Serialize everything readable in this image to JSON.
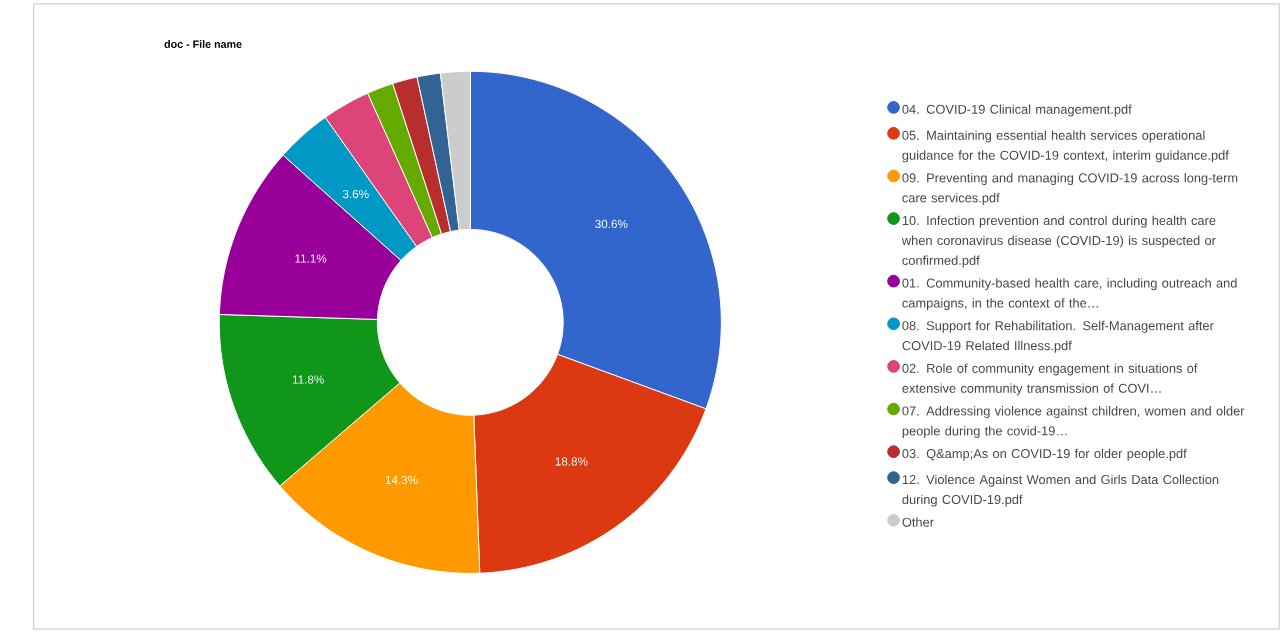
{
  "chart_data": {
    "type": "donut",
    "title": "doc - File name",
    "legend": "right",
    "categories": [
      "04. COVID-19 Clinical management.pdf",
      "05. Maintaining essential health services operational guidance for the COVID-19 context, interim guidance.pdf",
      "09. Preventing and managing COVID-19 across long-term care services.pdf",
      "10. Infection prevention and control during health care when coronavirus disease (COVID-19) is suspected or confirmed.pdf",
      "01. Community-based health care, including outreach and campaigns, in the context of the…",
      "08. Support for Rehabilitation. Self-Management after COVID-19 Related Illness.pdf",
      "02. Role of community engagement in situations of extensive community transmission of COVI…",
      "07. Addressing violence against children, women and older people during the covid-19…",
      "03. Q&amp;As on COVID-19 for older people.pdf",
      "12. Violence Against Women and Girls Data Collection during COVID-19.pdf",
      "Other"
    ],
    "values": [
      30.6,
      18.8,
      14.3,
      11.8,
      11.1,
      3.6,
      3.1,
      1.7,
      1.6,
      1.5,
      1.9
    ],
    "colors": [
      "#3366cc",
      "#dc3912",
      "#ff9900",
      "#109618",
      "#990099",
      "#0099c6",
      "#dd4477",
      "#66aa00",
      "#b82e2e",
      "#316395",
      "#cccccc"
    ],
    "value_labels": [
      "30.6%",
      "18.8%",
      "14.3%",
      "11.8%",
      "11.1%",
      "3.6%",
      null,
      null,
      null,
      null,
      null
    ]
  }
}
